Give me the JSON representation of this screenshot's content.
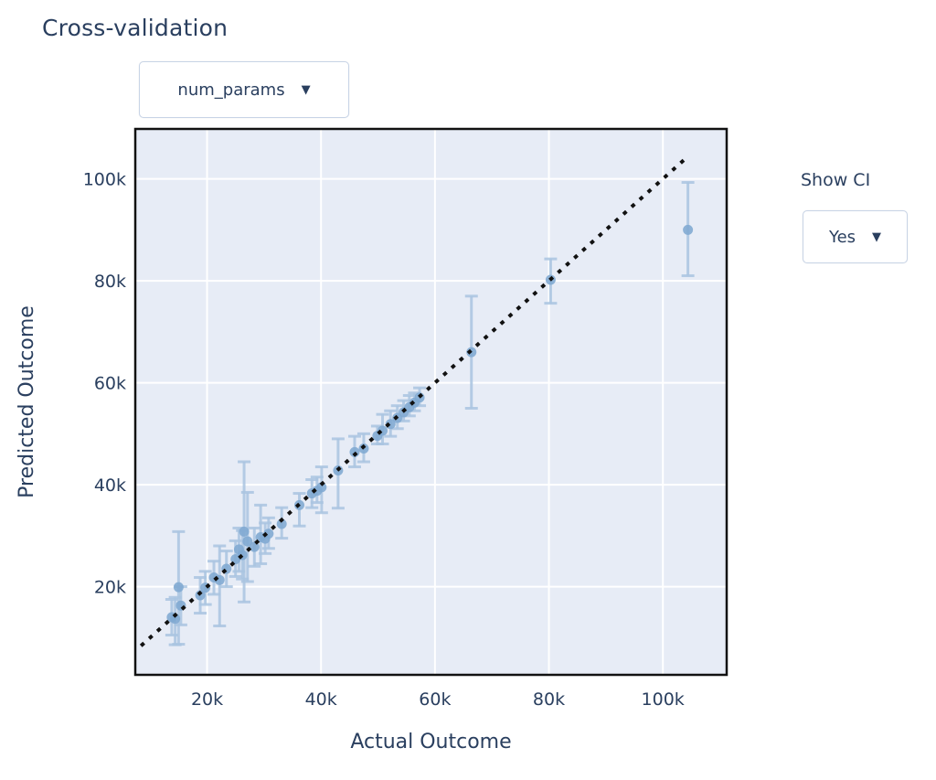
{
  "title": "Cross-validation",
  "controls": {
    "param_dropdown": {
      "label": "num_params",
      "arrow": "▼"
    },
    "show_ci": {
      "label": "Show CI",
      "value": "Yes",
      "arrow": "▼"
    }
  },
  "colors": {
    "text": "#2a3f5f",
    "plot_bg": "#e7ecf6",
    "grid": "#ffffff",
    "frame": "#111111",
    "marker": "#7fa9d2",
    "error_bar": "#aac5e1",
    "identity_line": "#111111",
    "dropdown_border": "#c8d4e6"
  },
  "chart_data": {
    "type": "scatter",
    "title": "Cross-validation",
    "xlabel": "Actual Outcome",
    "ylabel": "Predicted Outcome",
    "grid": true,
    "legend": "none",
    "x_ticks": [
      20000,
      40000,
      60000,
      80000,
      100000
    ],
    "x_tick_labels": [
      "20k",
      "40k",
      "60k",
      "80k",
      "100k"
    ],
    "y_ticks": [
      20000,
      40000,
      60000,
      80000,
      100000
    ],
    "y_tick_labels": [
      "20k",
      "40k",
      "60k",
      "80k",
      "100k"
    ],
    "x_range": [
      7400,
      111200
    ],
    "y_range": [
      2700,
      109800
    ],
    "identity_line": {
      "style": "dotted",
      "from": 8400,
      "to": 104400
    },
    "error_bars": "95% CI shown (Show CI = Yes)",
    "points": [
      {
        "actual": 13800,
        "predicted": 14000,
        "ci_low": 10500,
        "ci_high": 17500
      },
      {
        "actual": 14400,
        "predicted": 13700,
        "ci_low": 8600,
        "ci_high": 17900
      },
      {
        "actual": 15000,
        "predicted": 19900,
        "ci_low": 8700,
        "ci_high": 30800
      },
      {
        "actual": 15400,
        "predicted": 16300,
        "ci_low": 12500,
        "ci_high": 20000
      },
      {
        "actual": 18800,
        "predicted": 18300,
        "ci_low": 14800,
        "ci_high": 21800
      },
      {
        "actual": 19700,
        "predicted": 19800,
        "ci_low": 16500,
        "ci_high": 23000
      },
      {
        "actual": 21200,
        "predicted": 21800,
        "ci_low": 18500,
        "ci_high": 25000
      },
      {
        "actual": 22200,
        "predicted": 21300,
        "ci_low": 12300,
        "ci_high": 28000
      },
      {
        "actual": 23400,
        "predicted": 23500,
        "ci_low": 20000,
        "ci_high": 27000
      },
      {
        "actual": 25000,
        "predicted": 25400,
        "ci_low": 22000,
        "ci_high": 29000
      },
      {
        "actual": 25600,
        "predicted": 27300,
        "ci_low": 23000,
        "ci_high": 31500
      },
      {
        "actual": 26200,
        "predicted": 26200,
        "ci_low": 21500,
        "ci_high": 31000
      },
      {
        "actual": 26500,
        "predicted": 30800,
        "ci_low": 17000,
        "ci_high": 44500
      },
      {
        "actual": 27100,
        "predicted": 28900,
        "ci_low": 21000,
        "ci_high": 38500
      },
      {
        "actual": 28300,
        "predicted": 27800,
        "ci_low": 24000,
        "ci_high": 31500
      },
      {
        "actual": 29400,
        "predicted": 29700,
        "ci_low": 24500,
        "ci_high": 36000
      },
      {
        "actual": 30200,
        "predicted": 29400,
        "ci_low": 26500,
        "ci_high": 32500
      },
      {
        "actual": 30800,
        "predicted": 30400,
        "ci_low": 27500,
        "ci_high": 33500
      },
      {
        "actual": 33100,
        "predicted": 32300,
        "ci_low": 29500,
        "ci_high": 35500
      },
      {
        "actual": 36200,
        "predicted": 36000,
        "ci_low": 31900,
        "ci_high": 38300
      },
      {
        "actual": 38400,
        "predicted": 38300,
        "ci_low": 35500,
        "ci_high": 41000
      },
      {
        "actual": 39300,
        "predicted": 38800,
        "ci_low": 36500,
        "ci_high": 41500
      },
      {
        "actual": 40100,
        "predicted": 39500,
        "ci_low": 34500,
        "ci_high": 43500
      },
      {
        "actual": 43000,
        "predicted": 42800,
        "ci_low": 35400,
        "ci_high": 49000
      },
      {
        "actual": 45900,
        "predicted": 46400,
        "ci_low": 43500,
        "ci_high": 49500
      },
      {
        "actual": 47500,
        "predicted": 47100,
        "ci_low": 44500,
        "ci_high": 50000
      },
      {
        "actual": 49900,
        "predicted": 49600,
        "ci_low": 48000,
        "ci_high": 51500
      },
      {
        "actual": 50800,
        "predicted": 50600,
        "ci_low": 48000,
        "ci_high": 53800
      },
      {
        "actual": 52200,
        "predicted": 51900,
        "ci_low": 49500,
        "ci_high": 54500
      },
      {
        "actual": 53400,
        "predicted": 53100,
        "ci_low": 51000,
        "ci_high": 55500
      },
      {
        "actual": 54500,
        "predicted": 54200,
        "ci_low": 52500,
        "ci_high": 56500
      },
      {
        "actual": 55500,
        "predicted": 55200,
        "ci_low": 53500,
        "ci_high": 57500
      },
      {
        "actual": 56400,
        "predicted": 56100,
        "ci_low": 54500,
        "ci_high": 58000
      },
      {
        "actual": 57300,
        "predicted": 57100,
        "ci_low": 55500,
        "ci_high": 59000
      },
      {
        "actual": 66400,
        "predicted": 66000,
        "ci_low": 55000,
        "ci_high": 77000
      },
      {
        "actual": 80300,
        "predicted": 80200,
        "ci_low": 75600,
        "ci_high": 84300
      },
      {
        "actual": 104400,
        "predicted": 90000,
        "ci_low": 81000,
        "ci_high": 99300
      }
    ]
  }
}
